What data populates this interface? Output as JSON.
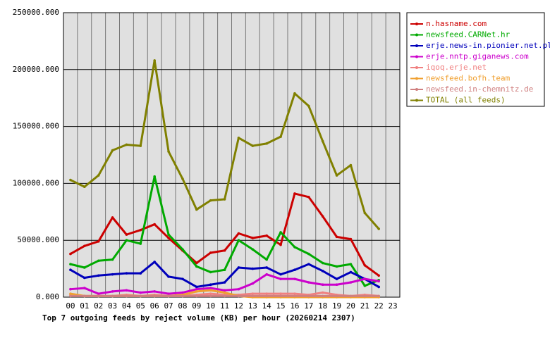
{
  "chart_data": {
    "type": "line",
    "title": "Top 7 outgoing feeds by reject volume (KB) per hour (20260214 2307)",
    "categories": [
      "00",
      "01",
      "02",
      "03",
      "04",
      "05",
      "06",
      "07",
      "08",
      "09",
      "10",
      "11",
      "12",
      "13",
      "14",
      "15",
      "16",
      "17",
      "18",
      "19",
      "20",
      "21",
      "22",
      "23"
    ],
    "ylim": [
      0,
      250000
    ],
    "yticks": [
      {
        "value": 0,
        "label": "0.000"
      },
      {
        "value": 50000,
        "label": "50000.000"
      },
      {
        "value": 100000,
        "label": "100000.000"
      },
      {
        "value": 150000,
        "label": "150000.000"
      },
      {
        "value": 200000,
        "label": "200000.000"
      },
      {
        "value": 250000,
        "label": "250000.000"
      }
    ],
    "grid": true,
    "legend": "right",
    "series": [
      {
        "name": "n.hasname.com",
        "color": "#cc0000",
        "values": [
          38000,
          45000,
          49000,
          70000,
          55000,
          59000,
          64000,
          52000,
          41000,
          30000,
          39000,
          41000,
          56000,
          52000,
          54000,
          46000,
          91000,
          88000,
          71000,
          53000,
          51000,
          28000,
          19000,
          null
        ]
      },
      {
        "name": "newsfeed.CARNet.hr",
        "color": "#00aa00",
        "values": [
          29000,
          26000,
          32000,
          33000,
          50000,
          47000,
          106000,
          55000,
          42000,
          27000,
          22000,
          24000,
          50000,
          42000,
          33000,
          57000,
          44000,
          38000,
          30000,
          27000,
          29000,
          10000,
          15000,
          null
        ]
      },
      {
        "name": "erje.news-in.pionier.net.pl",
        "color": "#0000bb",
        "values": [
          24000,
          17000,
          19000,
          20000,
          21000,
          21000,
          31000,
          18000,
          16000,
          9000,
          11000,
          13000,
          26000,
          25000,
          26000,
          20000,
          24000,
          29000,
          23000,
          16000,
          22000,
          16000,
          9000,
          null
        ]
      },
      {
        "name": "erje.nntp.giganews.com",
        "color": "#cc00cc",
        "values": [
          7000,
          8000,
          3000,
          5000,
          6000,
          4000,
          5000,
          3000,
          4000,
          7000,
          8000,
          6000,
          7000,
          12000,
          20000,
          16000,
          16000,
          13000,
          11000,
          11000,
          13000,
          16000,
          14000,
          null
        ]
      },
      {
        "name": "iqoq.erje.net",
        "color": "#f08080",
        "values": [
          2000,
          1000,
          1000,
          1000,
          2000,
          1000,
          2000,
          1000,
          1000,
          2000,
          3000,
          2000,
          2000,
          3000,
          3000,
          3000,
          3000,
          2000,
          4000,
          2000,
          1000,
          2000,
          1000,
          null
        ]
      },
      {
        "name": "newsfeed.bofh.team",
        "color": "#f0a030",
        "values": [
          3000,
          1000,
          1000,
          1000,
          1000,
          1000,
          1000,
          1000,
          2000,
          5000,
          6000,
          4000,
          1000,
          0,
          0,
          0,
          0,
          0,
          0,
          0,
          0,
          0,
          0,
          null
        ]
      },
      {
        "name": "newsfeed.in-chemnitz.de",
        "color": "#d08080",
        "values": [
          1000,
          1000,
          1000,
          1000,
          1000,
          1000,
          1000,
          1000,
          1000,
          1000,
          1000,
          1000,
          1000,
          1000,
          1000,
          1000,
          1000,
          1000,
          1000,
          1000,
          1000,
          1000,
          1000,
          null
        ]
      },
      {
        "name": "TOTAL (all feeds)",
        "color": "#808000",
        "values": [
          103000,
          97000,
          107000,
          129000,
          134000,
          133000,
          208000,
          128000,
          104000,
          77000,
          85000,
          86000,
          140000,
          133000,
          135000,
          141000,
          179000,
          168000,
          137000,
          107000,
          116000,
          74000,
          60000,
          null
        ]
      }
    ]
  }
}
